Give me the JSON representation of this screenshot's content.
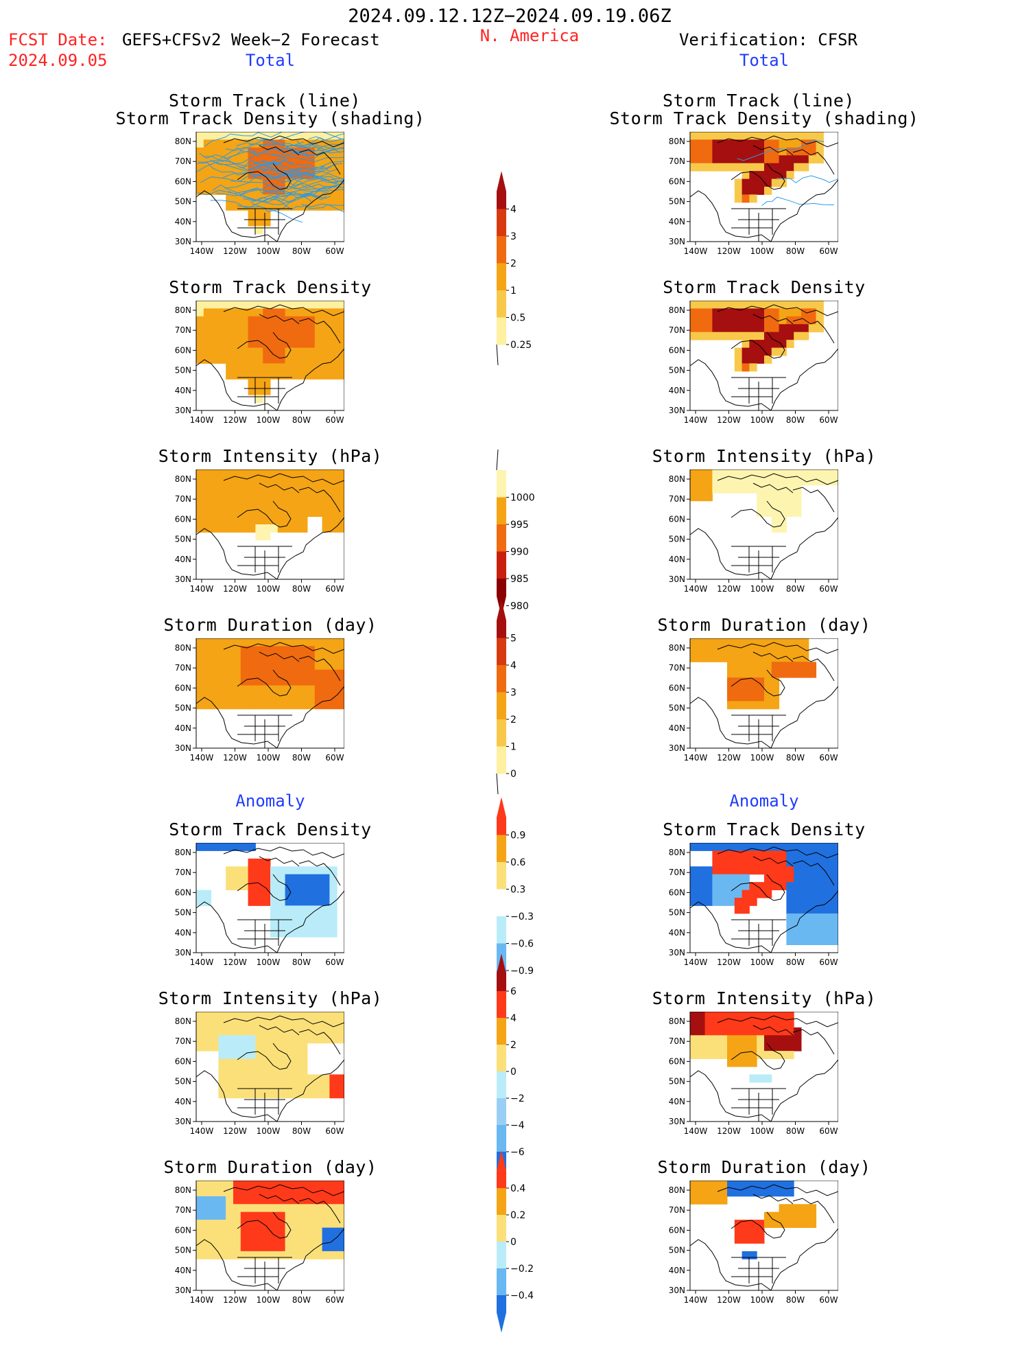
{
  "header": {
    "date_range": "2024.09.12.12Z−2024.09.19.06Z",
    "fcst_date_label": "FCST Date:",
    "fcst_date_value": "2024.09.05",
    "forecast_name": "GEFS+CFSv2 Week−2 Forecast",
    "region": "N. America",
    "verification": "Verification: CFSR"
  },
  "sections": {
    "total_left": "Total",
    "total_right": "Total",
    "anomaly_left": "Anomaly",
    "anomaly_right": "Anomaly"
  },
  "panel_titles": {
    "track_line": "Storm Track (line)",
    "track_shading": "Storm Track Density (shading)",
    "track_density": "Storm Track Density",
    "intensity": "Storm Intensity (hPa)",
    "duration": "Storm Duration (day)"
  },
  "axes": {
    "lon_ticks": [
      "140W",
      "120W",
      "100W",
      "80W",
      "60W"
    ],
    "lat_ticks": [
      "80N",
      "70N",
      "60N",
      "50N",
      "40N",
      "30N"
    ]
  },
  "colorbars": {
    "density": {
      "labels": [
        "4",
        "3",
        "2",
        "1",
        "0.5",
        "0.25"
      ],
      "colors": [
        "#a50f0f",
        "#d83a10",
        "#f06a10",
        "#f4a414",
        "#f8c84a",
        "#fdf0a0"
      ]
    },
    "intensity": {
      "labels": [
        "1000",
        "995",
        "990",
        "985",
        "980"
      ],
      "colors": [
        "#fdf4b0",
        "#f4a414",
        "#f06a10",
        "#c8200e",
        "#8b0000"
      ]
    },
    "duration": {
      "labels": [
        "5",
        "4",
        "3",
        "2",
        "1",
        "0"
      ],
      "colors": [
        "#a50f0f",
        "#d83a10",
        "#f06a10",
        "#f4a414",
        "#f8c84a",
        "#fdf0a0"
      ]
    },
    "anom_density": {
      "labels": [
        "0.9",
        "0.6",
        "0.3",
        "−0.3",
        "−0.6",
        "−0.9"
      ],
      "colors": [
        "#ff3a1a",
        "#f4a414",
        "#fbe07a",
        "#ffffff",
        "#b9ecf8",
        "#6ab8f2",
        "#2070e0"
      ]
    },
    "anom_intensity": {
      "labels": [
        "6",
        "4",
        "2",
        "0",
        "−2",
        "−4",
        "−6"
      ],
      "colors": [
        "#a50f0f",
        "#ff3a1a",
        "#f4a414",
        "#fbe07a",
        "#b9ecf8",
        "#9acff5",
        "#6ab8f2",
        "#2070e0"
      ]
    },
    "anom_duration": {
      "labels": [
        "0.4",
        "0.2",
        "0",
        "−0.2",
        "−0.4"
      ],
      "colors": [
        "#ff3a1a",
        "#f4a414",
        "#fbe07a",
        "#b9ecf8",
        "#6ab8f2",
        "#2070e0"
      ]
    }
  },
  "map_colors": {
    "track_line": "#2a9ae8",
    "coast": "#000000"
  }
}
